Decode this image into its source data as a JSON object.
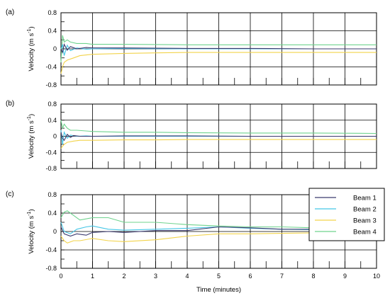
{
  "colors": {
    "Beam 1": "#3b3a6e",
    "Beam 2": "#45c6e6",
    "Beam 3": "#f2d34a",
    "Beam 4": "#6fd38e"
  },
  "chart_data": [
    {
      "type": "line",
      "panel_label": "(a)",
      "ylabel_main": "Velocity (m s",
      "ylabel_sup": "-1",
      "ylabel_end": ")",
      "xlim": [
        0,
        10
      ],
      "ylim": [
        -0.8,
        0.8
      ],
      "xticks": [
        "0",
        "1",
        "2",
        "3",
        "4",
        "5",
        "6",
        "7",
        "8",
        "9",
        "10"
      ],
      "yticks": [
        "0.8",
        "0.4",
        "0",
        "-0.4",
        "-0.8"
      ],
      "show_xtick_labels": false,
      "grid": true,
      "series": [
        {
          "name": "Beam 1",
          "x": [
            0,
            0.05,
            0.1,
            0.2,
            0.3,
            0.5,
            0.8,
            1,
            2,
            4,
            6,
            8,
            10
          ],
          "y": [
            0,
            -0.08,
            0.1,
            -0.03,
            0.05,
            0.0,
            0.03,
            0.02,
            0.02,
            0.01,
            0.01,
            0.0,
            0.0
          ]
        },
        {
          "name": "Beam 2",
          "x": [
            0,
            0.05,
            0.1,
            0.2,
            0.3,
            0.5,
            0.8,
            1,
            2,
            4,
            6,
            8,
            10
          ],
          "y": [
            0,
            0.1,
            -0.15,
            0.08,
            -0.04,
            0.02,
            -0.01,
            0.0,
            0.01,
            0.0,
            0.0,
            0.0,
            0.0
          ]
        },
        {
          "name": "Beam 3",
          "x": [
            0,
            0.05,
            0.1,
            0.2,
            0.4,
            0.6,
            1,
            2,
            3,
            4,
            6,
            8,
            10
          ],
          "y": [
            -0.55,
            -0.4,
            -0.3,
            -0.25,
            -0.2,
            -0.15,
            -0.12,
            -0.1,
            -0.09,
            -0.08,
            -0.08,
            -0.08,
            -0.08
          ]
        },
        {
          "name": "Beam 4",
          "x": [
            0,
            0.05,
            0.1,
            0.2,
            0.3,
            0.5,
            0.8,
            1,
            2,
            4,
            6,
            8,
            10
          ],
          "y": [
            -0.3,
            0.3,
            0.15,
            0.2,
            0.15,
            0.12,
            0.12,
            0.1,
            0.1,
            0.09,
            0.09,
            0.09,
            0.09
          ]
        }
      ]
    },
    {
      "type": "line",
      "panel_label": "(b)",
      "ylabel_main": "Velocity (m s",
      "ylabel_sup": "-1",
      "ylabel_end": ")",
      "xlim": [
        0,
        10
      ],
      "ylim": [
        -0.8,
        0.8
      ],
      "xticks": [
        "0",
        "1",
        "2",
        "3",
        "4",
        "5",
        "6",
        "7",
        "8",
        "9",
        "10"
      ],
      "yticks": [
        "0.8",
        "0.4",
        "0",
        "-0.4",
        "-0.8"
      ],
      "show_xtick_labels": false,
      "grid": true,
      "series": [
        {
          "name": "Beam 1",
          "x": [
            0,
            0.05,
            0.1,
            0.2,
            0.3,
            0.4,
            0.6,
            1,
            2,
            4,
            6,
            8,
            10
          ],
          "y": [
            0.1,
            -0.05,
            -0.1,
            0.05,
            -0.03,
            0.02,
            0.0,
            0.0,
            0.01,
            0.01,
            0.0,
            0.0,
            0.0
          ]
        },
        {
          "name": "Beam 2",
          "x": [
            0,
            0.05,
            0.1,
            0.2,
            0.3,
            0.5,
            0.8,
            1,
            2,
            4,
            6,
            8,
            10
          ],
          "y": [
            0.15,
            -0.2,
            0.1,
            -0.05,
            0.03,
            0.0,
            0.01,
            0.0,
            0.0,
            0.0,
            0.0,
            0.0,
            0.0
          ]
        },
        {
          "name": "Beam 3",
          "x": [
            0,
            0.05,
            0.1,
            0.2,
            0.4,
            0.6,
            1,
            2,
            3,
            4,
            6,
            8,
            10
          ],
          "y": [
            -0.3,
            -0.25,
            -0.2,
            -0.15,
            -0.12,
            -0.1,
            -0.1,
            -0.09,
            -0.09,
            -0.08,
            -0.08,
            -0.08,
            -0.08
          ]
        },
        {
          "name": "Beam 4",
          "x": [
            0,
            0.05,
            0.1,
            0.2,
            0.3,
            0.5,
            1,
            2,
            3,
            4,
            6,
            8,
            10
          ],
          "y": [
            0.4,
            0.2,
            0.3,
            0.2,
            0.15,
            0.15,
            0.12,
            0.1,
            0.1,
            0.09,
            0.08,
            0.08,
            0.07
          ]
        }
      ]
    },
    {
      "type": "line",
      "panel_label": "(c)",
      "ylabel_main": "Velocity (m s",
      "ylabel_sup": "-1",
      "ylabel_end": ")",
      "xlabel": "Time (minutes)",
      "xlim": [
        0,
        10
      ],
      "ylim": [
        -0.8,
        0.8
      ],
      "xticks": [
        "0",
        "1",
        "2",
        "3",
        "4",
        "5",
        "6",
        "7",
        "8",
        "9",
        "10"
      ],
      "yticks": [
        "0.8",
        "0.4",
        "0",
        "-0.4",
        "-0.8"
      ],
      "show_xtick_labels": true,
      "grid": true,
      "legend": {
        "position": "top-right",
        "entries": [
          "Beam 1",
          "Beam 2",
          "Beam 3",
          "Beam 4"
        ]
      },
      "series": [
        {
          "name": "Beam 1",
          "x": [
            0,
            0.1,
            0.3,
            0.5,
            0.8,
            1,
            1.5,
            2,
            3,
            4,
            5,
            6,
            7,
            8,
            9,
            10
          ],
          "y": [
            0.1,
            -0.05,
            -0.1,
            -0.05,
            -0.08,
            -0.02,
            0.0,
            -0.02,
            0.02,
            0.02,
            0.1,
            0.08,
            0.05,
            0.05,
            0.05,
            0.05
          ]
        },
        {
          "name": "Beam 2",
          "x": [
            0,
            0.1,
            0.3,
            0.5,
            0.8,
            1,
            1.5,
            2,
            3,
            4,
            5,
            6,
            7,
            8,
            9,
            10
          ],
          "y": [
            0.2,
            0.0,
            -0.05,
            0.05,
            0.1,
            0.12,
            0.05,
            0.03,
            0.05,
            0.07,
            0.1,
            0.07,
            0.05,
            0.04,
            0.04,
            0.04
          ]
        },
        {
          "name": "Beam 3",
          "x": [
            0,
            0.1,
            0.2,
            0.4,
            0.6,
            1,
            1.5,
            2,
            3,
            4,
            5,
            6,
            7,
            8,
            9,
            10
          ],
          "y": [
            -0.1,
            -0.2,
            -0.25,
            -0.2,
            -0.2,
            -0.15,
            -0.2,
            -0.22,
            -0.18,
            -0.1,
            -0.05,
            -0.05,
            -0.04,
            -0.03,
            -0.03,
            -0.03
          ]
        },
        {
          "name": "Beam 4",
          "x": [
            0,
            0.1,
            0.2,
            0.4,
            0.6,
            1,
            1.5,
            2,
            3,
            4,
            5,
            6,
            7,
            8,
            9,
            10
          ],
          "y": [
            0.3,
            0.42,
            0.45,
            0.35,
            0.25,
            0.3,
            0.3,
            0.2,
            0.2,
            0.15,
            0.12,
            0.1,
            0.1,
            0.08,
            0.05,
            0.05
          ]
        }
      ]
    }
  ]
}
